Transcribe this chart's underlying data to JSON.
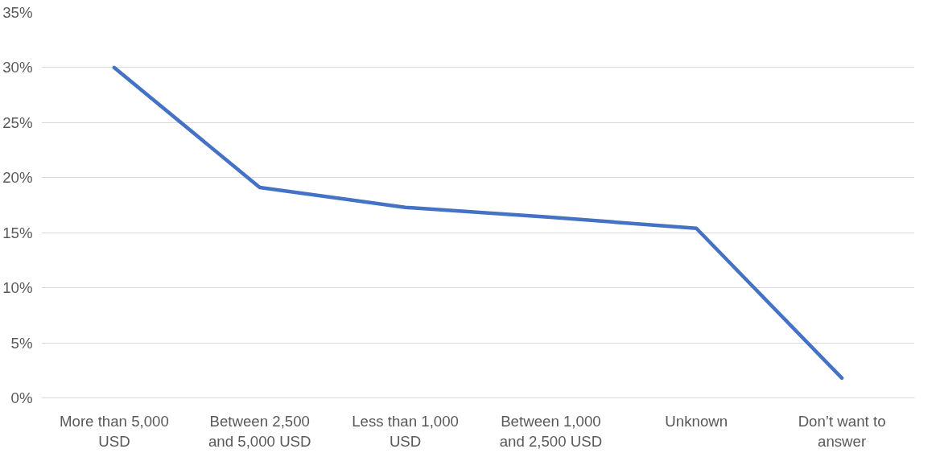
{
  "chart_data": {
    "type": "line",
    "categories": [
      "More than 5,000 USD",
      "Between 2,500 and 5,000 USD",
      "Less than 1,000 USD",
      "Between 1,000 and 2,500 USD",
      "Unknown",
      "Don’t want to answer"
    ],
    "series": [
      {
        "color": "#4472c4",
        "values": [
          30.0,
          19.1,
          17.3,
          16.4,
          15.4,
          1.8
        ]
      }
    ],
    "ylim": [
      0,
      35
    ],
    "yticks": [
      {
        "value": 0,
        "label": "0%"
      },
      {
        "value": 5,
        "label": "5%"
      },
      {
        "value": 10,
        "label": "10%"
      },
      {
        "value": 15,
        "label": "15%"
      },
      {
        "value": 20,
        "label": "20%"
      },
      {
        "value": 25,
        "label": "25%"
      },
      {
        "value": 30,
        "label": "30%"
      },
      {
        "value": 35,
        "label": "35%"
      }
    ],
    "grid": "y",
    "marker": "none",
    "line_style": "solid"
  }
}
